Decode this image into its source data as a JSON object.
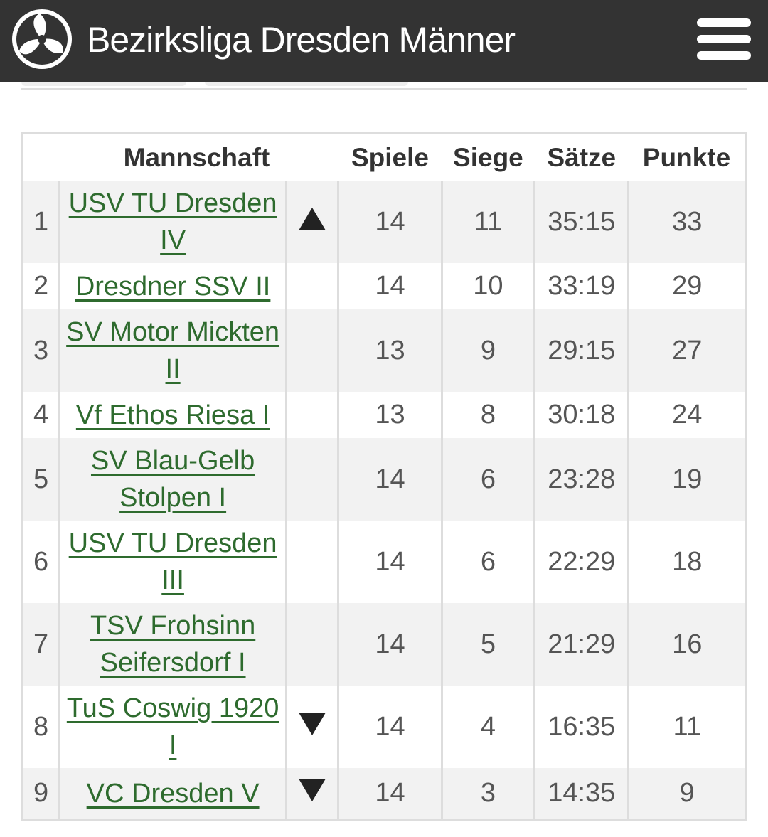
{
  "header": {
    "title": "Bezirksliga Dresden Männer",
    "logo_icon": "volleyball-icon",
    "menu_icon": "hamburger-menu-icon"
  },
  "table": {
    "columns": [
      "",
      "Mannschaft",
      "",
      "Spiele",
      "Siege",
      "Sätze",
      "Punkte"
    ],
    "rows": [
      {
        "rank": "1",
        "team": "USV TU Dresden IV",
        "trend": "up",
        "spiele": "14",
        "siege": "11",
        "saetze": "35:15",
        "punkte": "33"
      },
      {
        "rank": "2",
        "team": "Dresdner SSV II",
        "trend": "",
        "spiele": "14",
        "siege": "10",
        "saetze": "33:19",
        "punkte": "29"
      },
      {
        "rank": "3",
        "team": "SV Motor Mickten II",
        "trend": "",
        "spiele": "13",
        "siege": "9",
        "saetze": "29:15",
        "punkte": "27"
      },
      {
        "rank": "4",
        "team": "Vf Ethos Riesa I",
        "trend": "",
        "spiele": "13",
        "siege": "8",
        "saetze": "30:18",
        "punkte": "24"
      },
      {
        "rank": "5",
        "team": "SV Blau-Gelb Stolpen I",
        "trend": "",
        "spiele": "14",
        "siege": "6",
        "saetze": "23:28",
        "punkte": "19"
      },
      {
        "rank": "6",
        "team": "USV TU Dresden III",
        "trend": "",
        "spiele": "14",
        "siege": "6",
        "saetze": "22:29",
        "punkte": "18"
      },
      {
        "rank": "7",
        "team": "TSV Frohsinn Seifersdorf I",
        "trend": "",
        "spiele": "14",
        "siege": "5",
        "saetze": "21:29",
        "punkte": "16"
      },
      {
        "rank": "8",
        "team": "TuS Coswig 1920 I",
        "trend": "down",
        "spiele": "14",
        "siege": "4",
        "saetze": "16:35",
        "punkte": "11"
      },
      {
        "rank": "9",
        "team": "VC Dresden V",
        "trend": "down",
        "spiele": "14",
        "siege": "3",
        "saetze": "14:35",
        "punkte": "9"
      }
    ]
  },
  "colors": {
    "header_bg": "#333333",
    "link": "#2e6b2e",
    "row_alt": "#f2f2f2",
    "border": "#dddddd"
  }
}
